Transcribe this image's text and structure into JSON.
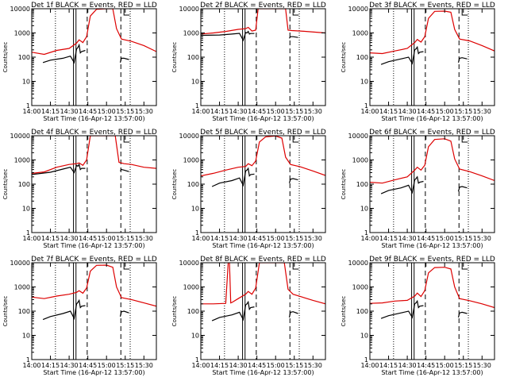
{
  "figure": {
    "xlabel": "Start Time (16-Apr-12 13:57:00)",
    "ylabel": "Counts/sec",
    "x_tick_labels": [
      "14:00",
      "14:15",
      "14:30",
      "14:45",
      "15:00",
      "15:15",
      "15:30"
    ],
    "y_tick_labels": [
      "1",
      "10",
      "100",
      "1000",
      "10000"
    ]
  },
  "colors": {
    "events": "#000000",
    "lld": "#dd0000",
    "axes": "#000000",
    "background": "#ffffff"
  },
  "chart_data": [
    {
      "type": "line",
      "title": "Det 1f BLACK = Events, RED = LLD",
      "xlabel": "Start Time (16-Apr-12 13:57:00)",
      "ylabel": "Counts/sec",
      "xlim": [
        "14:00",
        "15:40"
      ],
      "ylim": [
        1,
        10000
      ],
      "yscale": "log",
      "series": [
        {
          "name": "Events",
          "color": "#000000",
          "x": [
            "14:09",
            "14:15",
            "14:25",
            "14:31",
            "14:34",
            "14:36",
            "14:37",
            "14:38",
            "14:39",
            "14:40",
            "14:43"
          ],
          "y": [
            60,
            75,
            90,
            110,
            60,
            220,
            250,
            320,
            150,
            170,
            190
          ]
        },
        {
          "name": "Events",
          "color": "#000000",
          "x": [
            "15:11",
            "15:12",
            "15:14",
            "15:18"
          ],
          "y": [
            60,
            90,
            90,
            80
          ]
        },
        {
          "name": "LLD",
          "color": "#dd0000",
          "x": [
            "14:00",
            "14:10",
            "14:20",
            "14:30",
            "14:36",
            "14:38",
            "14:41",
            "14:44",
            "14:47",
            "14:52",
            "15:00",
            "15:05",
            "15:08",
            "15:12",
            "15:20",
            "15:30",
            "15:40"
          ],
          "y": [
            160,
            130,
            190,
            230,
            380,
            520,
            400,
            700,
            5000,
            9500,
            10000,
            10000,
            1500,
            560,
            450,
            300,
            170
          ]
        }
      ]
    },
    {
      "type": "line",
      "title": "Det 2f BLACK = Events, RED = LLD",
      "xlabel": "Start Time (16-Apr-12 13:57:00)",
      "ylabel": "Counts/sec",
      "xlim": [
        "14:00",
        "15:40"
      ],
      "ylim": [
        1,
        10000
      ],
      "yscale": "log",
      "series": [
        {
          "name": "Events",
          "color": "#000000",
          "x": [
            "14:00",
            "14:15",
            "14:25",
            "14:31",
            "14:34",
            "14:36",
            "14:37",
            "14:38",
            "14:39",
            "14:40",
            "14:43"
          ],
          "y": [
            800,
            820,
            900,
            960,
            500,
            1050,
            1000,
            1150,
            900,
            950,
            950
          ]
        },
        {
          "name": "Events",
          "color": "#000000",
          "x": [
            "15:11",
            "15:12",
            "15:14",
            "15:18"
          ],
          "y": [
            600,
            700,
            700,
            650
          ]
        },
        {
          "name": "LLD",
          "color": "#dd0000",
          "x": [
            "14:00",
            "14:10",
            "14:20",
            "14:30",
            "14:36",
            "14:38",
            "14:41",
            "14:44",
            "14:46",
            "15:08",
            "15:10",
            "15:13",
            "15:20",
            "15:40"
          ],
          "y": [
            900,
            1000,
            1150,
            1400,
            1500,
            1700,
            1200,
            1300,
            10000,
            10000,
            1300,
            1250,
            1200,
            1000
          ]
        }
      ]
    },
    {
      "type": "line",
      "title": "Det 3f BLACK = Events, RED = LLD",
      "xlabel": "Start Time (16-Apr-12 13:57:00)",
      "ylabel": "Counts/sec",
      "xlim": [
        "14:00",
        "15:40"
      ],
      "ylim": [
        1,
        10000
      ],
      "yscale": "log",
      "series": [
        {
          "name": "Events",
          "color": "#000000",
          "x": [
            "14:09",
            "14:15",
            "14:25",
            "14:31",
            "14:34",
            "14:36",
            "14:37",
            "14:38",
            "14:39",
            "14:40",
            "14:43"
          ],
          "y": [
            50,
            65,
            85,
            100,
            55,
            200,
            220,
            260,
            140,
            160,
            170
          ]
        },
        {
          "name": "Events",
          "color": "#000000",
          "x": [
            "15:11",
            "15:12",
            "15:14",
            "15:18"
          ],
          "y": [
            60,
            90,
            95,
            85
          ]
        },
        {
          "name": "LLD",
          "color": "#dd0000",
          "x": [
            "14:00",
            "14:10",
            "14:20",
            "14:30",
            "14:36",
            "14:38",
            "14:41",
            "14:44",
            "14:47",
            "14:52",
            "15:00",
            "15:05",
            "15:08",
            "15:12",
            "15:20",
            "15:30",
            "15:40"
          ],
          "y": [
            150,
            140,
            180,
            230,
            400,
            540,
            420,
            700,
            4000,
            7800,
            8000,
            7200,
            1400,
            560,
            470,
            300,
            180
          ]
        }
      ]
    },
    {
      "type": "line",
      "title": "Det 4f BLACK = Events, RED = LLD",
      "xlabel": "Start Time (16-Apr-12 13:57:00)",
      "ylabel": "Counts/sec",
      "xlim": [
        "14:00",
        "15:40"
      ],
      "ylim": [
        1,
        10000
      ],
      "yscale": "log",
      "series": [
        {
          "name": "Events",
          "color": "#000000",
          "x": [
            "14:00",
            "14:15",
            "14:25",
            "14:31",
            "14:34",
            "14:36",
            "14:37",
            "14:38",
            "14:39",
            "14:40",
            "14:43"
          ],
          "y": [
            250,
            310,
            420,
            500,
            300,
            600,
            550,
            650,
            400,
            450,
            450
          ]
        },
        {
          "name": "Events",
          "color": "#000000",
          "x": [
            "15:11",
            "15:12",
            "15:14",
            "15:18"
          ],
          "y": [
            350,
            400,
            380,
            330
          ]
        },
        {
          "name": "LLD",
          "color": "#dd0000",
          "x": [
            "14:00",
            "14:10",
            "14:20",
            "14:30",
            "14:36",
            "14:38",
            "14:41",
            "14:44",
            "14:47",
            "15:07",
            "15:10",
            "15:14",
            "15:20",
            "15:30",
            "15:40"
          ],
          "y": [
            280,
            320,
            500,
            650,
            700,
            750,
            600,
            1000,
            10000,
            10000,
            800,
            700,
            650,
            500,
            450
          ]
        }
      ]
    },
    {
      "type": "line",
      "title": "Det 5f BLACK = Events, RED = LLD",
      "xlabel": "Start Time (16-Apr-12 13:57:00)",
      "ylabel": "Counts/sec",
      "xlim": [
        "14:00",
        "15:40"
      ],
      "ylim": [
        1,
        10000
      ],
      "yscale": "log",
      "series": [
        {
          "name": "Events",
          "color": "#000000",
          "x": [
            "14:09",
            "14:15",
            "14:25",
            "14:31",
            "14:34",
            "14:36",
            "14:37",
            "14:38",
            "14:39",
            "14:40",
            "14:43"
          ],
          "y": [
            80,
            110,
            140,
            180,
            90,
            350,
            380,
            450,
            220,
            250,
            260
          ]
        },
        {
          "name": "Events",
          "color": "#000000",
          "x": [
            "15:11",
            "15:12",
            "15:14",
            "15:18"
          ],
          "y": [
            110,
            160,
            170,
            150
          ]
        },
        {
          "name": "LLD",
          "color": "#dd0000",
          "x": [
            "14:00",
            "14:10",
            "14:20",
            "14:30",
            "14:36",
            "14:38",
            "14:41",
            "14:44",
            "14:47",
            "14:52",
            "15:00",
            "15:05",
            "15:08",
            "15:12",
            "15:20",
            "15:30",
            "15:40"
          ],
          "y": [
            220,
            280,
            380,
            500,
            540,
            700,
            580,
            900,
            5500,
            9000,
            9800,
            8000,
            1300,
            650,
            520,
            350,
            230
          ]
        }
      ]
    },
    {
      "type": "line",
      "title": "Det 6f BLACK = Events, RED = LLD",
      "xlabel": "Start Time (16-Apr-12 13:57:00)",
      "ylabel": "Counts/sec",
      "xlim": [
        "14:00",
        "15:40"
      ],
      "ylim": [
        1,
        10000
      ],
      "yscale": "log",
      "series": [
        {
          "name": "Events",
          "color": "#000000",
          "x": [
            "14:09",
            "14:15",
            "14:25",
            "14:31",
            "14:34",
            "14:36",
            "14:37",
            "14:38",
            "14:39",
            "14:40",
            "14:43"
          ],
          "y": [
            40,
            55,
            70,
            90,
            45,
            150,
            170,
            200,
            110,
            120,
            130
          ]
        },
        {
          "name": "Events",
          "color": "#000000",
          "x": [
            "15:11",
            "15:12",
            "15:14",
            "15:18"
          ],
          "y": [
            50,
            75,
            80,
            70
          ]
        },
        {
          "name": "LLD",
          "color": "#dd0000",
          "x": [
            "14:00",
            "14:10",
            "14:20",
            "14:30",
            "14:36",
            "14:38",
            "14:41",
            "14:44",
            "14:47",
            "14:52",
            "15:00",
            "15:05",
            "15:08",
            "15:12",
            "15:20",
            "15:30",
            "15:40"
          ],
          "y": [
            120,
            110,
            150,
            200,
            380,
            500,
            380,
            600,
            3500,
            7000,
            7500,
            6000,
            1100,
            420,
            330,
            220,
            140
          ]
        }
      ]
    },
    {
      "type": "line",
      "title": "Det 7f BLACK = Events, RED = LLD",
      "xlabel": "Start Time (16-Apr-12 13:57:00)",
      "ylabel": "Counts/sec",
      "xlim": [
        "14:00",
        "15:40"
      ],
      "ylim": [
        1,
        10000
      ],
      "yscale": "log",
      "series": [
        {
          "name": "Events",
          "color": "#000000",
          "x": [
            "14:09",
            "14:15",
            "14:25",
            "14:31",
            "14:34",
            "14:36",
            "14:37",
            "14:38",
            "14:39",
            "14:40",
            "14:43"
          ],
          "y": [
            45,
            60,
            80,
            100,
            50,
            200,
            230,
            280,
            140,
            160,
            170
          ]
        },
        {
          "name": "Events",
          "color": "#000000",
          "x": [
            "15:11",
            "15:12",
            "15:14",
            "15:18"
          ],
          "y": [
            60,
            95,
            100,
            85
          ]
        },
        {
          "name": "LLD",
          "color": "#dd0000",
          "x": [
            "14:00",
            "14:10",
            "14:20",
            "14:30",
            "14:36",
            "14:38",
            "14:41",
            "14:44",
            "14:47",
            "14:52",
            "15:00",
            "15:05",
            "15:08",
            "15:12",
            "15:20",
            "15:30",
            "15:40"
          ],
          "y": [
            380,
            330,
            420,
            500,
            600,
            700,
            550,
            900,
            4500,
            7800,
            8000,
            6500,
            1000,
            360,
            300,
            220,
            160
          ]
        }
      ]
    },
    {
      "type": "line",
      "title": "Det 8f BLACK = Events, RED = LLD",
      "xlabel": "Start Time (16-Apr-12 13:57:00)",
      "ylabel": "Counts/sec",
      "xlim": [
        "14:00",
        "15:40"
      ],
      "ylim": [
        1,
        10000
      ],
      "yscale": "log",
      "series": [
        {
          "name": "Events",
          "color": "#000000",
          "x": [
            "14:09",
            "14:15",
            "14:25",
            "14:31",
            "14:34",
            "14:36",
            "14:37",
            "14:38",
            "14:39",
            "14:40",
            "14:43"
          ],
          "y": [
            40,
            55,
            70,
            90,
            45,
            180,
            200,
            240,
            120,
            140,
            150
          ]
        },
        {
          "name": "Events",
          "color": "#000000",
          "x": [
            "15:11",
            "15:12",
            "15:14",
            "15:18"
          ],
          "y": [
            55,
            90,
            95,
            80
          ]
        },
        {
          "name": "LLD",
          "color": "#dd0000",
          "x": [
            "14:00",
            "14:10",
            "14:20",
            "14:22",
            "14:23",
            "14:24",
            "14:25",
            "14:30",
            "14:36",
            "14:38",
            "14:41",
            "14:44",
            "14:47",
            "15:07",
            "15:10",
            "15:14",
            "15:20",
            "15:30",
            "15:40"
          ],
          "y": [
            200,
            200,
            210,
            10000,
            10000,
            220,
            230,
            330,
            500,
            650,
            500,
            900,
            10000,
            10000,
            800,
            500,
            400,
            280,
            200
          ]
        }
      ]
    },
    {
      "type": "line",
      "title": "Det 9f BLACK = Events, RED = LLD",
      "xlabel": "Start Time (16-Apr-12 13:57:00)",
      "ylabel": "Counts/sec",
      "xlim": [
        "14:00",
        "15:40"
      ],
      "ylim": [
        1,
        10000
      ],
      "yscale": "log",
      "series": [
        {
          "name": "Events",
          "color": "#000000",
          "x": [
            "14:09",
            "14:15",
            "14:25",
            "14:31",
            "14:34",
            "14:36",
            "14:37",
            "14:38",
            "14:39",
            "14:40",
            "14:43"
          ],
          "y": [
            50,
            65,
            85,
            100,
            55,
            200,
            220,
            260,
            140,
            160,
            170
          ]
        },
        {
          "name": "Events",
          "color": "#000000",
          "x": [
            "15:11",
            "15:12",
            "15:14",
            "15:18"
          ],
          "y": [
            55,
            85,
            90,
            80
          ]
        },
        {
          "name": "LLD",
          "color": "#dd0000",
          "x": [
            "14:00",
            "14:10",
            "14:20",
            "14:30",
            "14:36",
            "14:38",
            "14:41",
            "14:44",
            "14:47",
            "14:52",
            "15:00",
            "15:05",
            "15:08",
            "15:12",
            "15:20",
            "15:30",
            "15:40"
          ],
          "y": [
            210,
            220,
            260,
            280,
            420,
            560,
            400,
            700,
            3800,
            6300,
            6500,
            5500,
            1000,
            330,
            270,
            200,
            140
          ]
        }
      ]
    }
  ]
}
